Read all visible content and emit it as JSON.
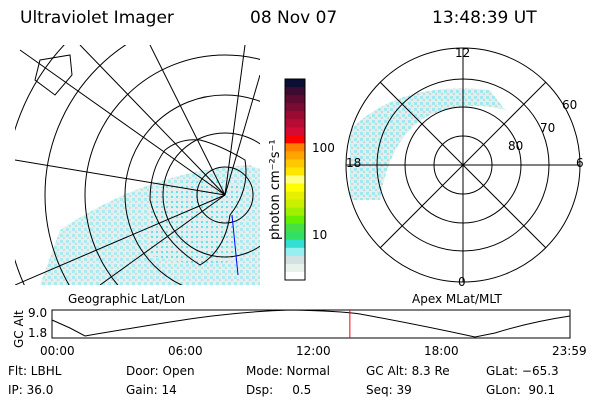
{
  "header": {
    "instrument": "Ultraviolet Imager",
    "date": "08 Nov 07",
    "time": "13:48:39 UT"
  },
  "colorbar": {
    "label": "photon cm⁻²s⁻¹",
    "ticks": [
      "100",
      "10"
    ],
    "colors": [
      "#0b0f33",
      "#3b0b30",
      "#5c0b33",
      "#7a0b33",
      "#990b33",
      "#b80b33",
      "#d60b33",
      "#ff0000",
      "#ff7f00",
      "#ffa500",
      "#ffc800",
      "#ffe600",
      "#ffff80",
      "#ffff00",
      "#e6f000",
      "#c8f000",
      "#a0f000",
      "#64f000",
      "#46e046",
      "#32e064",
      "#32e0d2",
      "#96f0f0",
      "#d2e1e1",
      "#e8f2ea",
      "#ffffff"
    ]
  },
  "polar": {
    "labels": {
      "top": "12",
      "bottom": "0",
      "left": "18",
      "right": "6"
    },
    "lat_labels": [
      "60",
      "70",
      "80"
    ]
  },
  "map_labels": {
    "left": "Geographic Lat/Lon",
    "right": "Apex MLat/MLT"
  },
  "timeline": {
    "ylabel": "GC Alt",
    "yticks": [
      "9.0",
      "1.8"
    ],
    "xticks": [
      "00:00",
      "06:00",
      "12:00",
      "18:00",
      "23:59"
    ],
    "current_fraction": 0.575,
    "marker_color": "#ff0000"
  },
  "info": {
    "flt": "Flt: LBHL",
    "ip": "IP: 36.0",
    "door": "Door: Open",
    "gain": "Gain: 14",
    "mode": "Mode: Normal",
    "dsp": "Dsp:     0.5",
    "gcalt": "GC Alt: 8.3 Re",
    "seq": "Seq: 39",
    "glat": "GLat: −65.3",
    "glon": "GLon:  90.1"
  }
}
